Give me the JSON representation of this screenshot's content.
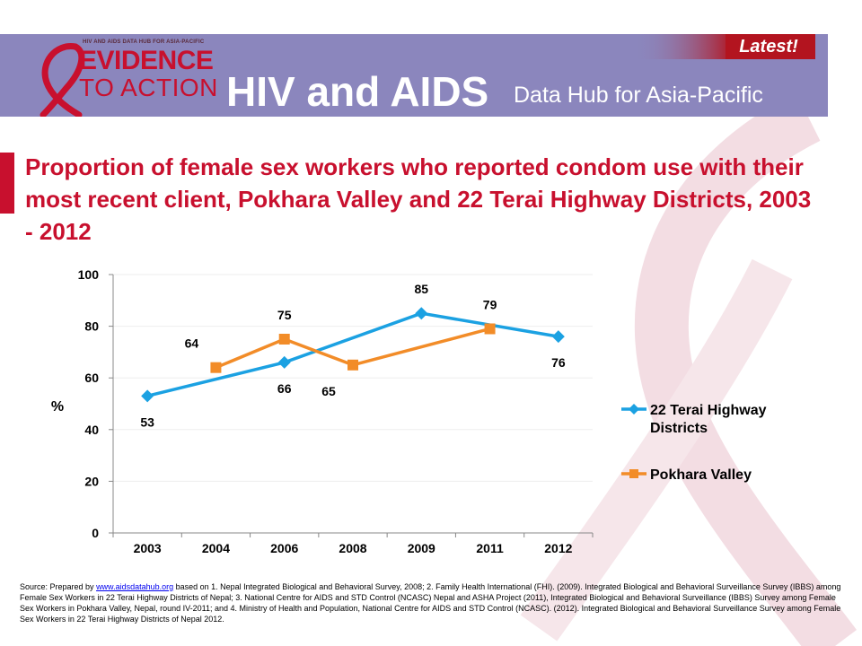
{
  "header": {
    "logo_small_text": "HIV AND AIDS DATA HUB FOR ASIA-PACIFIC",
    "logo_line1": "EVIDENCE",
    "logo_line2": "TO ACTION",
    "title_main": "HIV and AIDS",
    "title_sub": "Data Hub for Asia-Pacific",
    "badge": "Latest!"
  },
  "colors": {
    "header_bg": "#8b86bd",
    "accent_red": "#c8102e",
    "series_terai": "#1ba1e2",
    "series_pokhara": "#f28c28"
  },
  "chart_data": {
    "type": "line",
    "title": "Proportion of female sex workers who reported condom use with their most recent client, Pokhara Valley and 22 Terai Highway Districts, 2003 - 2012",
    "categories": [
      "2003",
      "2004",
      "2006",
      "2008",
      "2009",
      "2011",
      "2012"
    ],
    "ylabel": "%",
    "ylim": [
      0,
      100
    ],
    "yticks": [
      "0",
      "20",
      "40",
      "60",
      "80",
      "100"
    ],
    "legend_position": "right",
    "series": [
      {
        "name": "22 Terai Highway Districts",
        "marker": "diamond",
        "values": [
          53,
          null,
          66,
          null,
          85,
          null,
          76
        ]
      },
      {
        "name": "Pokhara Valley",
        "marker": "square",
        "values": [
          null,
          64,
          75,
          65,
          null,
          79,
          null
        ]
      }
    ]
  },
  "source": {
    "prefix": "Source: Prepared by ",
    "link": "www.aidsdatahub.org",
    "rest": " based on 1. Nepal Integrated Biological and Behavioral Survey, 2008; 2. Family Health International (FHI). (2009). Integrated Biological and Behavioral Surveillance Survey (IBBS) among Female Sex Workers in 22 Terai Highway Districts of Nepal; 3. National Centre for AIDS and STD Control (NCASC) Nepal and ASHA Project (2011), Integrated Biological and Behavioral Surveillance (IBBS) Survey among Female Sex Workers in Pokhara Valley, Nepal, round IV-2011; and 4. Ministry of Health and Population, National Centre for AIDS and STD Control (NCASC). (2012). Integrated Biological and Behavioral Surveillance Survey among Female Sex Workers in 22 Terai Highway Districts of Nepal 2012."
  }
}
